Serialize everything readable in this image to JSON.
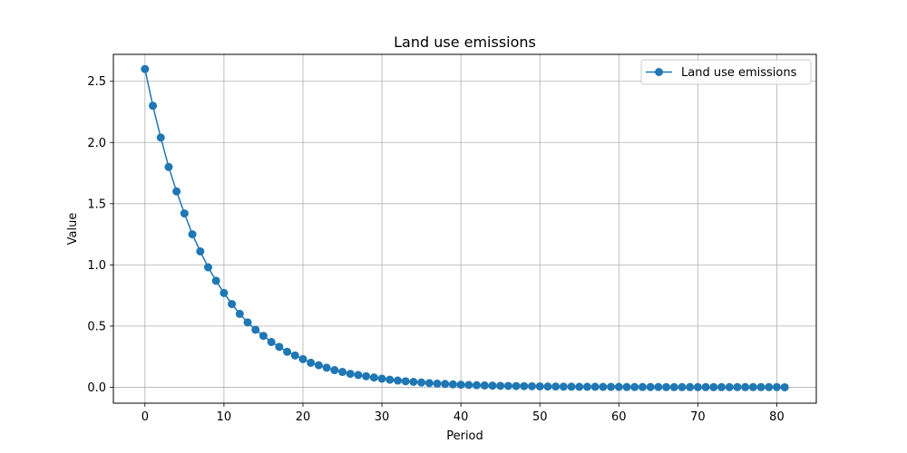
{
  "chart_data": {
    "type": "line",
    "title": "Land use emissions",
    "xlabel": "Period",
    "ylabel": "Value",
    "xlim": [
      -4,
      85
    ],
    "ylim": [
      -0.13,
      2.72
    ],
    "xticks": [
      0,
      10,
      20,
      30,
      40,
      50,
      60,
      70,
      80
    ],
    "yticks": [
      0.0,
      0.5,
      1.0,
      1.5,
      2.0,
      2.5
    ],
    "xtick_labels": [
      "0",
      "10",
      "20",
      "30",
      "40",
      "50",
      "60",
      "70",
      "80"
    ],
    "ytick_labels": [
      "0.0",
      "0.5",
      "1.0",
      "1.5",
      "2.0",
      "2.5"
    ],
    "grid": true,
    "legend_position": "top-right",
    "series": [
      {
        "name": "Land use emissions",
        "color": "#1f77b4",
        "marker": "circle",
        "x": [
          0,
          1,
          2,
          3,
          4,
          5,
          6,
          7,
          8,
          9,
          10,
          11,
          12,
          13,
          14,
          15,
          16,
          17,
          18,
          19,
          20,
          21,
          22,
          23,
          24,
          25,
          26,
          27,
          28,
          29,
          30,
          31,
          32,
          33,
          34,
          35,
          36,
          37,
          38,
          39,
          40,
          41,
          42,
          43,
          44,
          45,
          46,
          47,
          48,
          49,
          50,
          51,
          52,
          53,
          54,
          55,
          56,
          57,
          58,
          59,
          60,
          61,
          62,
          63,
          64,
          65,
          66,
          67,
          68,
          69,
          70,
          71,
          72,
          73,
          74,
          75,
          76,
          77,
          78,
          79,
          80,
          81
        ],
        "y": [
          2.6,
          2.3,
          2.04,
          1.8,
          1.6,
          1.42,
          1.25,
          1.11,
          0.98,
          0.87,
          0.77,
          0.68,
          0.6,
          0.53,
          0.47,
          0.42,
          0.37,
          0.33,
          0.29,
          0.26,
          0.23,
          0.2,
          0.18,
          0.16,
          0.14,
          0.125,
          0.11,
          0.1,
          0.09,
          0.08,
          0.07,
          0.062,
          0.055,
          0.049,
          0.044,
          0.039,
          0.034,
          0.03,
          0.027,
          0.024,
          0.021,
          0.019,
          0.017,
          0.015,
          0.013,
          0.012,
          0.011,
          0.01,
          0.009,
          0.008,
          0.007,
          0.006,
          0.006,
          0.005,
          0.005,
          0.004,
          0.004,
          0.004,
          0.003,
          0.003,
          0.003,
          0.002,
          0.002,
          0.002,
          0.002,
          0.002,
          0.001,
          0.001,
          0.001,
          0.001,
          0.001,
          0.001,
          0.001,
          0.001,
          0.001,
          0.001,
          0.001,
          0.001,
          0.001,
          0.001,
          0.001,
          0.0
        ]
      }
    ]
  }
}
